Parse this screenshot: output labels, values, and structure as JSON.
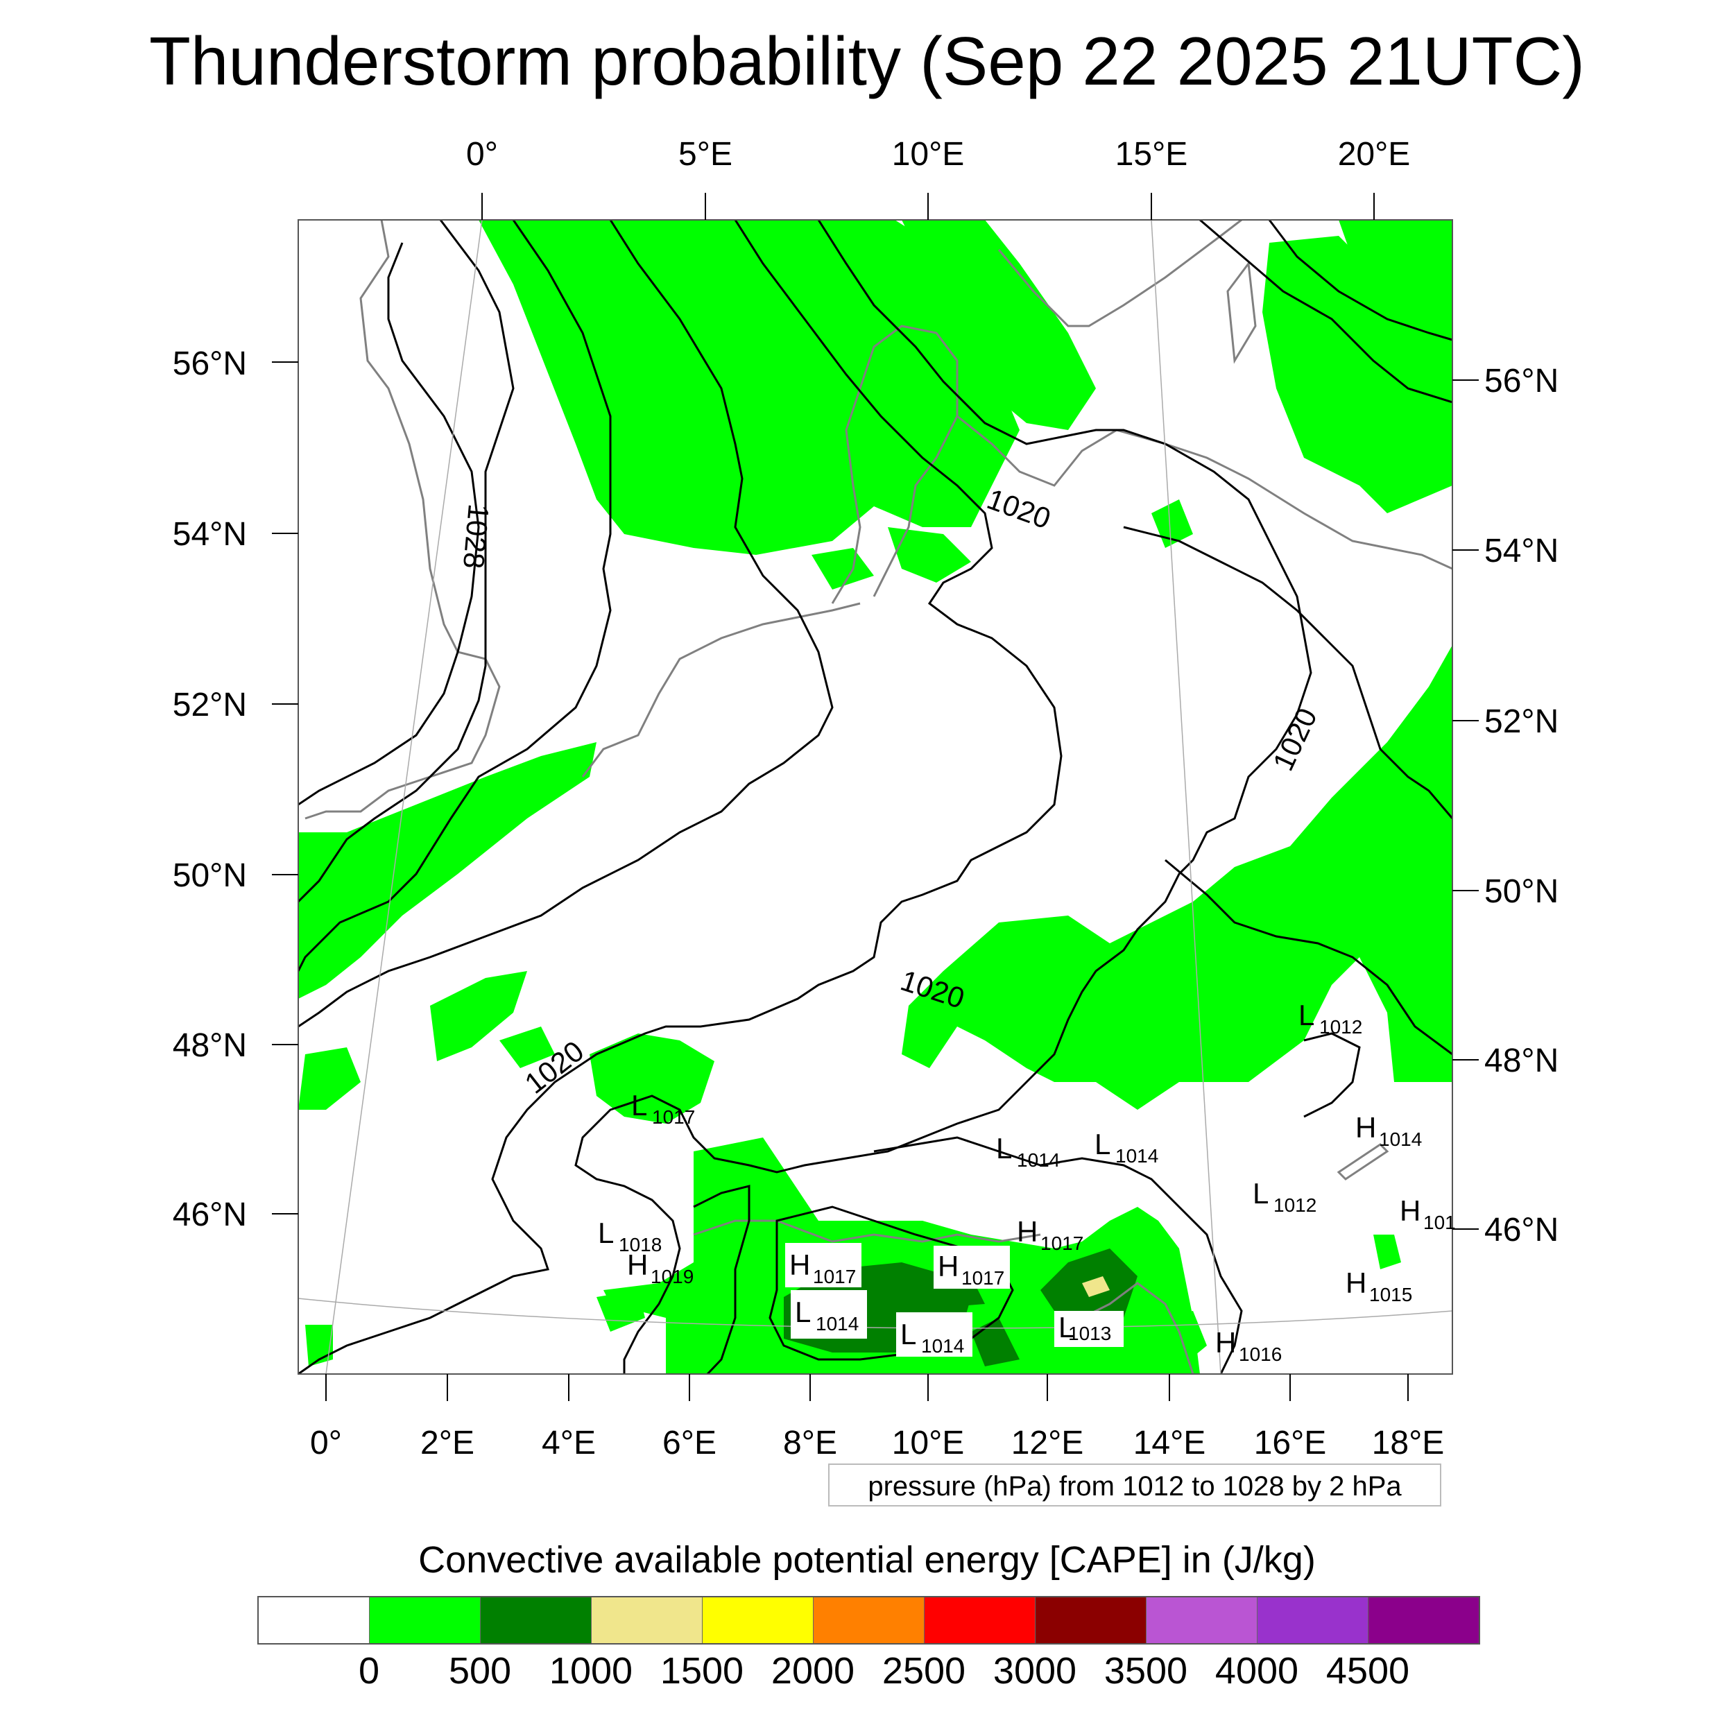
{
  "title": "Thunderstorm probability (Sep 22 2025 21UTC)",
  "top_lon_labels": [
    "0°",
    "5°E",
    "10°E",
    "15°E",
    "20°E"
  ],
  "bottom_lon_labels": [
    "0°",
    "2°E",
    "4°E",
    "6°E",
    "8°E",
    "10°E",
    "12°E",
    "14°E",
    "16°E",
    "18°E"
  ],
  "left_lat_labels": [
    "56°N",
    "54°N",
    "52°N",
    "50°N",
    "48°N",
    "46°N"
  ],
  "right_lat_labels": [
    "56°N",
    "54°N",
    "52°N",
    "50°N",
    "48°N",
    "46°N"
  ],
  "isobar_labels": [
    "1028",
    "1020",
    "1020",
    "1020",
    "1020"
  ],
  "pressure_centers": [
    {
      "kind": "L",
      "value": "1017"
    },
    {
      "kind": "L",
      "value": "1014"
    },
    {
      "kind": "L",
      "value": "1014"
    },
    {
      "kind": "L",
      "value": "1012"
    },
    {
      "kind": "L",
      "value": "1012"
    },
    {
      "kind": "L",
      "value": "1018"
    },
    {
      "kind": "H",
      "value": "1019"
    },
    {
      "kind": "H",
      "value": "1017"
    },
    {
      "kind": "H",
      "value": "1017"
    },
    {
      "kind": "H",
      "value": "1017"
    },
    {
      "kind": "L",
      "value": "1014"
    },
    {
      "kind": "L",
      "value": "1014"
    },
    {
      "kind": "L",
      "value": "1013"
    },
    {
      "kind": "H",
      "value": "1014"
    },
    {
      "kind": "H",
      "value": "101"
    },
    {
      "kind": "H",
      "value": "1015"
    },
    {
      "kind": "H",
      "value": "1016"
    }
  ],
  "pressure_note": "pressure (hPa) from 1012 to 1028 by 2 hPa",
  "colorbar": {
    "title": "Convective available potential energy [CAPE] in (J/kg)",
    "colors": [
      "#ffffff",
      "#00ff00",
      "#008000",
      "#f0e68c",
      "#ffff00",
      "#ff8000",
      "#ff0000",
      "#8b0000",
      "#ba55d3",
      "#9932cc",
      "#8b008b"
    ],
    "tick_labels": [
      "0",
      "500",
      "1000",
      "1500",
      "2000",
      "2500",
      "3000",
      "3500",
      "4000",
      "4500"
    ]
  },
  "colors": {
    "cape_green": "#00ff00",
    "cape_darkgreen": "#008000",
    "cape_khaki": "#f0e68c",
    "isobar": "#000000",
    "coastline": "#808080"
  }
}
